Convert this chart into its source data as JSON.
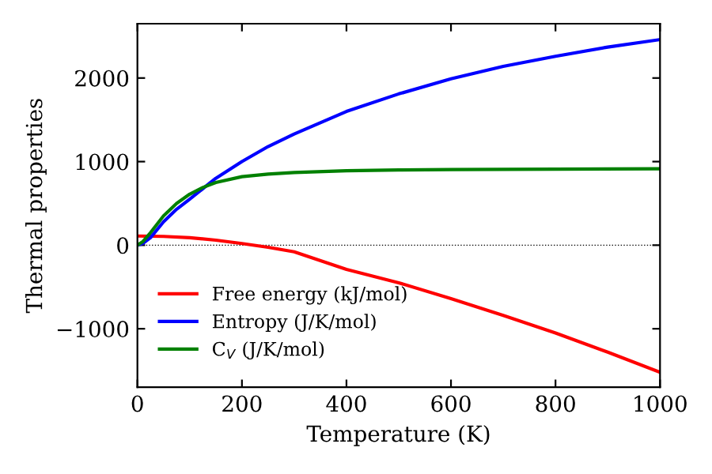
{
  "chart_data": {
    "type": "line",
    "xlabel": "Temperature (K)",
    "ylabel": "Thermal properties",
    "xlim": [
      0,
      1000
    ],
    "ylim": [
      -1700,
      2650
    ],
    "xticks": [
      0,
      200,
      400,
      600,
      800,
      1000
    ],
    "yticks": [
      -1000,
      0,
      1000,
      2000
    ],
    "grid": false,
    "legend": "bottom left",
    "marker": "none",
    "line_style": "solid",
    "ref_lines": [
      {
        "axis": "y",
        "value": 0,
        "color": "#000000",
        "line_style": "dotted"
      }
    ],
    "series": [
      {
        "name": "Free energy (kJ/mol)",
        "color": "#ff0000",
        "x": [
          0,
          50,
          100,
          150,
          200,
          250,
          300,
          400,
          500,
          600,
          700,
          800,
          900,
          1000
        ],
        "values": [
          110,
          105,
          90,
          60,
          20,
          -25,
          -80,
          -290,
          -450,
          -640,
          -840,
          -1050,
          -1280,
          -1520
        ]
      },
      {
        "name": "Entropy (J/K/mol)",
        "color": "#0000ff",
        "x": [
          0,
          10,
          25,
          50,
          75,
          100,
          150,
          200,
          250,
          300,
          400,
          500,
          600,
          700,
          800,
          900,
          1000
        ],
        "values": [
          0,
          20,
          90,
          280,
          430,
          550,
          800,
          1000,
          1180,
          1330,
          1600,
          1810,
          1990,
          2140,
          2260,
          2370,
          2460
        ]
      },
      {
        "name": "C$_{V}$ (J/K/mol)",
        "color": "#008000",
        "x": [
          0,
          10,
          25,
          50,
          75,
          100,
          125,
          150,
          200,
          250,
          300,
          400,
          500,
          600,
          800,
          1000
        ],
        "values": [
          0,
          40,
          150,
          350,
          500,
          610,
          690,
          750,
          820,
          850,
          870,
          890,
          900,
          905,
          910,
          915
        ]
      }
    ]
  }
}
